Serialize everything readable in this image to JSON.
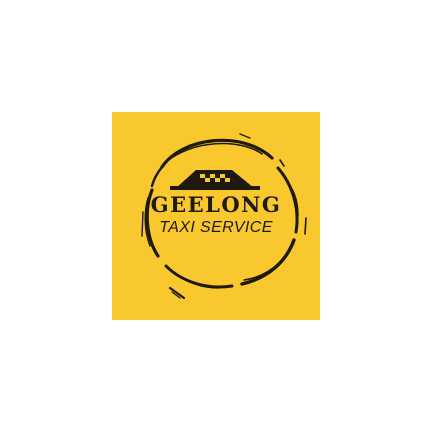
{
  "logo": {
    "name": "GEELONG",
    "tagline": "TAXI SERVICE",
    "icon": "taxi-roof-sign-icon",
    "colors": {
      "background": "#f9c82e",
      "ink": "#1e1a10",
      "page": "#ffffff"
    }
  }
}
